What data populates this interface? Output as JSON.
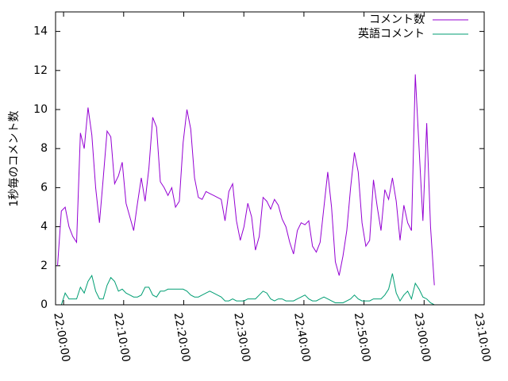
{
  "chart_data": {
    "type": "line",
    "y_label": "1秒毎のコメント数",
    "x": [
      "21:59:00",
      "21:59:38",
      "22:00:16",
      "22:00:54",
      "22:01:32",
      "22:02:10",
      "22:02:48",
      "22:03:26",
      "22:04:04",
      "22:04:42",
      "22:05:20",
      "22:05:58",
      "22:06:36",
      "22:07:14",
      "22:07:52",
      "22:08:30",
      "22:09:08",
      "22:09:46",
      "22:10:24",
      "22:11:02",
      "22:11:40",
      "22:12:18",
      "22:12:56",
      "22:13:34",
      "22:14:12",
      "22:14:50",
      "22:15:28",
      "22:16:06",
      "22:16:44",
      "22:17:22",
      "22:18:00",
      "22:18:38",
      "22:19:16",
      "22:19:54",
      "22:20:32",
      "22:21:10",
      "22:21:48",
      "22:22:26",
      "22:23:04",
      "22:23:42",
      "22:24:20",
      "22:24:58",
      "22:25:36",
      "22:26:14",
      "22:26:52",
      "22:27:30",
      "22:28:08",
      "22:28:46",
      "22:29:24",
      "22:30:02",
      "22:30:40",
      "22:31:18",
      "22:31:56",
      "22:32:34",
      "22:33:12",
      "22:33:50",
      "22:34:28",
      "22:35:06",
      "22:35:44",
      "22:36:22",
      "22:37:00",
      "22:37:38",
      "22:38:16",
      "22:38:54",
      "22:39:32",
      "22:40:10",
      "22:40:48",
      "22:41:26",
      "22:42:04",
      "22:42:42",
      "22:43:20",
      "22:43:58",
      "22:44:36",
      "22:45:14",
      "22:45:52",
      "22:46:30",
      "22:47:08",
      "22:47:46",
      "22:48:24",
      "22:49:02",
      "22:49:40",
      "22:50:18",
      "22:50:56",
      "22:51:34",
      "22:52:12",
      "22:52:50",
      "22:53:28",
      "22:54:06",
      "22:54:44",
      "22:55:22",
      "22:56:00",
      "22:56:38",
      "22:57:16",
      "22:57:54",
      "22:58:32",
      "22:59:10",
      "22:59:48",
      "23:00:26",
      "23:01:04",
      "23:01:42"
    ],
    "series": [
      {
        "name": "コメント数",
        "color": "#9400d3",
        "values": [
          2.0,
          4.8,
          5.0,
          4.0,
          3.5,
          3.2,
          8.8,
          8.0,
          10.1,
          8.7,
          6.0,
          4.2,
          6.5,
          8.9,
          8.6,
          6.2,
          6.6,
          7.3,
          5.2,
          4.5,
          3.8,
          5.2,
          6.5,
          5.3,
          7.0,
          9.6,
          9.1,
          6.3,
          6.0,
          5.6,
          6.0,
          5.0,
          5.3,
          8.3,
          10.0,
          9.0,
          6.5,
          5.5,
          5.4,
          5.8,
          5.7,
          5.6,
          5.5,
          5.4,
          4.3,
          5.8,
          6.2,
          4.3,
          3.3,
          4.0,
          5.2,
          4.5,
          2.8,
          3.5,
          5.5,
          5.3,
          4.9,
          5.4,
          5.1,
          4.4,
          4.0,
          3.2,
          2.6,
          3.8,
          4.2,
          4.1,
          4.3,
          3.0,
          2.7,
          3.2,
          5.0,
          6.8,
          5.0,
          2.2,
          1.5,
          2.5,
          3.8,
          6.0,
          7.8,
          6.8,
          4.2,
          3.0,
          3.3,
          6.4,
          5.0,
          3.8,
          5.9,
          5.4,
          6.5,
          5.3,
          3.3,
          5.1,
          4.2,
          3.8,
          11.8,
          8.0,
          4.3,
          9.3,
          4.0,
          1.0
        ]
      },
      {
        "name": "英語コメント",
        "color": "#009e73",
        "values": [
          0,
          0,
          0.6,
          0.3,
          0.3,
          0.3,
          0.9,
          0.6,
          1.2,
          1.5,
          0.7,
          0.3,
          0.3,
          1.0,
          1.4,
          1.2,
          0.7,
          0.8,
          0.6,
          0.5,
          0.4,
          0.4,
          0.5,
          0.9,
          0.9,
          0.5,
          0.4,
          0.7,
          0.7,
          0.8,
          0.8,
          0.8,
          0.8,
          0.8,
          0.7,
          0.5,
          0.4,
          0.4,
          0.5,
          0.6,
          0.7,
          0.6,
          0.5,
          0.4,
          0.2,
          0.2,
          0.3,
          0.2,
          0.2,
          0.2,
          0.3,
          0.3,
          0.3,
          0.5,
          0.7,
          0.6,
          0.3,
          0.2,
          0.3,
          0.3,
          0.2,
          0.2,
          0.2,
          0.3,
          0.4,
          0.5,
          0.3,
          0.2,
          0.2,
          0.3,
          0.4,
          0.3,
          0.2,
          0.1,
          0.1,
          0.1,
          0.2,
          0.3,
          0.5,
          0.3,
          0.2,
          0.2,
          0.2,
          0.3,
          0.3,
          0.3,
          0.5,
          0.8,
          1.6,
          0.6,
          0.2,
          0.5,
          0.7,
          0.3,
          1.1,
          0.8,
          0.4,
          0.3,
          0.1,
          0
        ]
      }
    ],
    "xlim": [
      "21:58:40",
      "23:10:00"
    ],
    "xticks": [
      "22:00:00",
      "22:10:00",
      "22:20:00",
      "22:30:00",
      "22:40:00",
      "22:50:00",
      "23:00:00",
      "23:10:00"
    ],
    "ylim": [
      0,
      15
    ],
    "yticks": [
      0,
      2,
      4,
      6,
      8,
      10,
      12,
      14
    ],
    "legend": "top-right"
  }
}
